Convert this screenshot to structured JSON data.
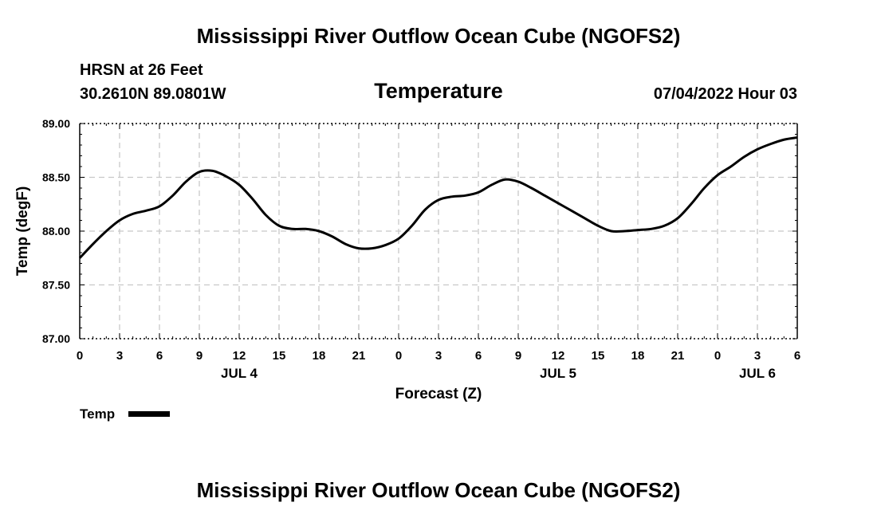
{
  "header": {
    "title": "Mississippi River Outflow Ocean Cube (NGOFS2)",
    "station": "HRSN at 26 Feet",
    "coords": "30.2610N  89.0801W",
    "chart_title": "Temperature",
    "datetime": "07/04/2022 Hour 03"
  },
  "legend": {
    "label": "Temp"
  },
  "footer": {
    "title": "Mississippi River Outflow Ocean Cube (NGOFS2)"
  },
  "chart_data": {
    "type": "line",
    "title": "Temperature",
    "xlabel": "Forecast (Z)",
    "ylabel": "Temp (degF)",
    "ylim": [
      87.0,
      89.0
    ],
    "xlim": [
      0,
      54
    ],
    "yticks": [
      "87.00",
      "87.50",
      "88.00",
      "88.50",
      "89.00"
    ],
    "ytick_values": [
      87.0,
      87.5,
      88.0,
      88.5,
      89.0
    ],
    "xticks": [
      "0",
      "3",
      "6",
      "9",
      "12",
      "15",
      "18",
      "21",
      "0",
      "3",
      "6",
      "9",
      "12",
      "15",
      "18",
      "21",
      "0",
      "3",
      "6"
    ],
    "date_labels": [
      {
        "label": "JUL 4",
        "hour": 12
      },
      {
        "label": "JUL 5",
        "hour": 36
      },
      {
        "label": "JUL 6",
        "hour": 51
      }
    ],
    "grid": true,
    "series": [
      {
        "name": "Temp",
        "color": "#000000",
        "x": [
          0,
          1,
          2,
          3,
          4,
          5,
          6,
          7,
          8,
          9,
          10,
          11,
          12,
          13,
          14,
          15,
          16,
          17,
          18,
          19,
          20,
          21,
          22,
          23,
          24,
          25,
          26,
          27,
          28,
          29,
          30,
          31,
          32,
          33,
          34,
          35,
          36,
          37,
          38,
          39,
          40,
          41,
          42,
          43,
          44,
          45,
          46,
          47,
          48,
          49,
          50,
          51,
          52,
          53,
          54
        ],
        "values": [
          87.75,
          87.88,
          88.0,
          88.1,
          88.16,
          88.19,
          88.23,
          88.33,
          88.46,
          88.55,
          88.56,
          88.51,
          88.43,
          88.3,
          88.15,
          88.05,
          88.02,
          88.02,
          88.0,
          87.95,
          87.88,
          87.84,
          87.84,
          87.87,
          87.93,
          88.05,
          88.2,
          88.29,
          88.32,
          88.33,
          88.36,
          88.43,
          88.48,
          88.46,
          88.4,
          88.33,
          88.26,
          88.19,
          88.12,
          88.05,
          88.0,
          88.0,
          88.01,
          88.02,
          88.05,
          88.12,
          88.25,
          88.4,
          88.52,
          88.6,
          88.69,
          88.76,
          88.81,
          88.85,
          88.87
        ]
      }
    ]
  }
}
